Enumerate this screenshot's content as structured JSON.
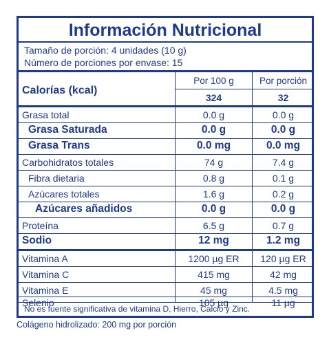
{
  "title": "Información Nutricional",
  "serving_size": "Tamaño de porción: 4 unidades (10 g)",
  "servings_per_container": "Número de porciones por envase: 15",
  "headers": {
    "col1": "Por 100 g",
    "col2": "Por porción"
  },
  "calories": {
    "label": "Calorías (kcal)",
    "per100": "324",
    "perserving": "32"
  },
  "rows": [
    {
      "name": "Grasa total",
      "per100": "0.0 g",
      "perserving": "0.0 g"
    },
    {
      "name": "Grasa Saturada",
      "per100": "0.0 g",
      "perserving": "0.0 g"
    },
    {
      "name": "Grasa Trans",
      "per100": "0.0 mg",
      "perserving": "0.0 mg"
    },
    {
      "name": "Carbohidratos totales",
      "per100": "74 g",
      "perserving": "7.4 g"
    },
    {
      "name": "Fibra dietaria",
      "per100": "0.8 g",
      "perserving": "0.1 g"
    },
    {
      "name": "Azúcares totales",
      "per100": "1.6 g",
      "perserving": "0.2 g"
    },
    {
      "name": "Azúcares añadidos",
      "per100": "0.0 g",
      "perserving": "0.0 g"
    },
    {
      "name": "Proteína",
      "per100": "6.5 g",
      "perserving": "0.7 g"
    },
    {
      "name": "Sodio",
      "per100": "12 mg",
      "perserving": "1.2 mg"
    },
    {
      "name": "Vitamina A",
      "per100": "1200 µg ER",
      "perserving": "120 µg ER"
    },
    {
      "name": "Vitamina C",
      "per100": "415 mg",
      "perserving": "42 mg"
    },
    {
      "name": "Vitamina E",
      "per100": "45 mg",
      "perserving": "4.5 mg"
    },
    {
      "name": "Selenio",
      "per100": "105 µg",
      "perserving": "11 µg"
    }
  ],
  "footnote": "No es fuente significativa de vitamina D, Hierro, Calcio y Zinc.",
  "extra_note": "Colágeno hidrolizado: 200 mg por porción",
  "colors": {
    "primary": "#1e3a8a",
    "background": "#ffffff"
  }
}
